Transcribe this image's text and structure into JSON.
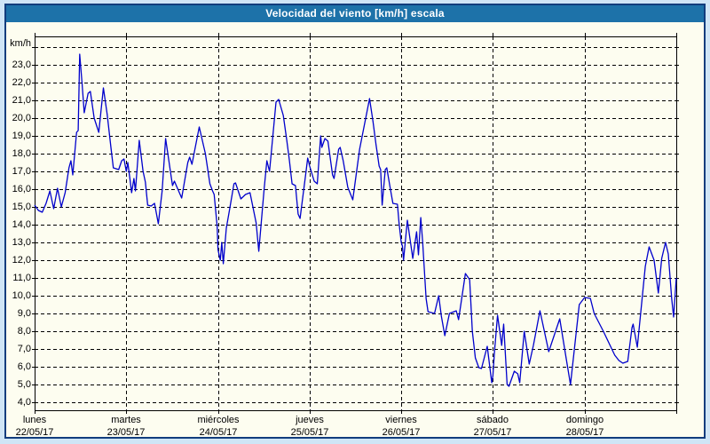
{
  "window": {
    "title": "Velocidad del viento [km/h] escala"
  },
  "colors": {
    "page_bg": "#cfe5f6",
    "frame_border": "#123d7d",
    "titlebar_bg": "#1d72a9",
    "titlebar_text": "#ffffff",
    "panel_bg": "#fdfdf0",
    "grid": "#000000",
    "axis": "#000000",
    "line": "#0000cc",
    "label_text": "#000000"
  },
  "chart_data": {
    "type": "line",
    "title": "Velocidad del viento [km/h] escala",
    "unit_label": "km/h",
    "legend": "none",
    "grid": "dashed",
    "y_axis": {
      "tick_labels": [
        "23,0",
        "22,0",
        "21,0",
        "20,0",
        "19,0",
        "18,0",
        "17,0",
        "16,0",
        "15,0",
        "14,0",
        "13,0",
        "12,0",
        "11,0",
        "10,0",
        "9,0",
        "8,0",
        "7,0",
        "6,0",
        "5,0",
        "4,0"
      ],
      "tick_values": [
        23,
        22,
        21,
        20,
        19,
        18,
        17,
        16,
        15,
        14,
        13,
        12,
        11,
        10,
        9,
        8,
        7,
        6,
        5,
        4
      ],
      "unlabeled_top_gridline": 24,
      "plot_range": [
        3.55,
        24.6
      ]
    },
    "x_axis": {
      "days": [
        {
          "name": "lunes",
          "date": "22/05/17"
        },
        {
          "name": "martes",
          "date": "23/05/17"
        },
        {
          "name": "miércoles",
          "date": "24/05/17"
        },
        {
          "name": "jueves",
          "date": "25/05/17"
        },
        {
          "name": "viernes",
          "date": "26/05/17"
        },
        {
          "name": "sábado",
          "date": "27/05/17"
        },
        {
          "name": "domingo",
          "date": "28/05/17"
        }
      ],
      "hours_total": 168,
      "gridlines_at": "midnights"
    },
    "series": [
      {
        "name": "velocidad del viento",
        "unit": "km/h",
        "color": "#0000cc",
        "points_hour_value": [
          [
            0,
            15.1
          ],
          [
            1,
            14.8
          ],
          [
            2,
            14.7
          ],
          [
            3,
            15.2
          ],
          [
            4,
            15.9
          ],
          [
            5,
            14.9
          ],
          [
            6,
            16.05
          ],
          [
            7,
            15.0
          ],
          [
            8,
            15.8
          ],
          [
            9,
            17.2
          ],
          [
            9.5,
            17.6
          ],
          [
            10,
            16.8
          ],
          [
            11,
            19.2
          ],
          [
            11.4,
            19.3
          ],
          [
            11.8,
            23.6
          ],
          [
            12.4,
            22.0
          ],
          [
            13,
            20.3
          ],
          [
            14,
            21.4
          ],
          [
            14.6,
            21.5
          ],
          [
            15.6,
            20.0
          ],
          [
            16.8,
            19.2
          ],
          [
            18,
            21.7
          ],
          [
            19,
            20.2
          ],
          [
            20,
            18.3
          ],
          [
            20.6,
            17.2
          ],
          [
            22,
            17.1
          ],
          [
            22.8,
            17.6
          ],
          [
            23.4,
            17.7
          ],
          [
            24,
            17.0
          ],
          [
            24.4,
            17.5
          ],
          [
            25,
            16.5
          ],
          [
            25.4,
            15.8
          ],
          [
            26,
            16.6
          ],
          [
            26.4,
            15.9
          ],
          [
            27.4,
            18.75
          ],
          [
            28.4,
            17.0
          ],
          [
            29,
            16.4
          ],
          [
            29.6,
            15.1
          ],
          [
            30.5,
            15.05
          ],
          [
            31.4,
            15.2
          ],
          [
            32.4,
            14.05
          ],
          [
            33.4,
            15.9
          ],
          [
            34.3,
            18.85
          ],
          [
            35.7,
            16.8
          ],
          [
            36.1,
            16.2
          ],
          [
            36.6,
            16.45
          ],
          [
            38.5,
            15.5
          ],
          [
            40.1,
            17.5
          ],
          [
            40.6,
            17.8
          ],
          [
            41.2,
            17.4
          ],
          [
            43.1,
            19.5
          ],
          [
            44.7,
            18.0
          ],
          [
            45.9,
            16.3
          ],
          [
            46.6,
            15.9
          ],
          [
            47,
            15.7
          ],
          [
            47.8,
            13.9
          ],
          [
            48,
            12.6
          ],
          [
            48.6,
            12.0
          ],
          [
            49,
            13.0
          ],
          [
            49.4,
            11.8
          ],
          [
            50.2,
            13.8
          ],
          [
            51,
            14.8
          ],
          [
            52.2,
            16.3
          ],
          [
            52.6,
            16.35
          ],
          [
            54,
            15.45
          ],
          [
            55.2,
            15.7
          ],
          [
            56.4,
            15.8
          ],
          [
            58,
            14.1
          ],
          [
            58.7,
            12.5
          ],
          [
            60.1,
            16.0
          ],
          [
            60.8,
            17.6
          ],
          [
            61.5,
            17.0
          ],
          [
            63.2,
            20.9
          ],
          [
            63.9,
            21.05
          ],
          [
            65.1,
            20.15
          ],
          [
            66,
            18.8
          ],
          [
            66.7,
            17.65
          ],
          [
            67.4,
            16.3
          ],
          [
            68.3,
            16.2
          ],
          [
            69,
            14.6
          ],
          [
            69.5,
            14.35
          ],
          [
            71,
            16.9
          ],
          [
            71.5,
            17.75
          ],
          [
            72,
            17.3
          ],
          [
            73.2,
            16.45
          ],
          [
            74,
            16.3
          ],
          [
            74.9,
            19.0
          ],
          [
            75.2,
            18.35
          ],
          [
            76,
            18.85
          ],
          [
            76.8,
            18.7
          ],
          [
            78,
            16.8
          ],
          [
            78.4,
            16.6
          ],
          [
            79.6,
            18.25
          ],
          [
            80,
            18.35
          ],
          [
            80.8,
            17.6
          ],
          [
            82,
            16.1
          ],
          [
            83.3,
            15.4
          ],
          [
            85.1,
            18.25
          ],
          [
            87.7,
            21.1
          ],
          [
            88.6,
            19.8
          ],
          [
            89.4,
            18.5
          ],
          [
            90.2,
            17.3
          ],
          [
            90.6,
            17.1
          ],
          [
            91,
            15.1
          ],
          [
            91.8,
            17.1
          ],
          [
            92.2,
            17.2
          ],
          [
            93,
            16.2
          ],
          [
            93.8,
            15.2
          ],
          [
            95,
            15.15
          ],
          [
            95.4,
            14.1
          ],
          [
            96,
            13.0
          ],
          [
            96.3,
            12.8
          ],
          [
            96.6,
            12.0
          ],
          [
            97.6,
            14.25
          ],
          [
            99,
            12.1
          ],
          [
            100,
            13.6
          ],
          [
            100.5,
            12.3
          ],
          [
            101.1,
            14.4
          ],
          [
            101.6,
            13.05
          ],
          [
            102.5,
            9.85
          ],
          [
            103,
            9.1
          ],
          [
            104.7,
            9.0
          ],
          [
            105.8,
            10.0
          ],
          [
            106.5,
            8.85
          ],
          [
            107.4,
            7.75
          ],
          [
            108.6,
            9.0
          ],
          [
            110.4,
            9.15
          ],
          [
            111,
            8.65
          ],
          [
            112.8,
            11.25
          ],
          [
            113.9,
            10.9
          ],
          [
            114.6,
            8.0
          ],
          [
            115.4,
            6.5
          ],
          [
            116.3,
            5.95
          ],
          [
            117,
            5.9
          ],
          [
            118.5,
            7.15
          ],
          [
            119.7,
            5.1
          ],
          [
            120,
            5.5
          ],
          [
            120.4,
            6.8
          ],
          [
            121.2,
            8.9
          ],
          [
            122.3,
            7.2
          ],
          [
            122.8,
            8.4
          ],
          [
            123.7,
            5.0
          ],
          [
            124.2,
            4.9
          ],
          [
            125.6,
            5.75
          ],
          [
            126.5,
            5.6
          ],
          [
            127,
            5.1
          ],
          [
            128.2,
            8.0
          ],
          [
            129.5,
            6.15
          ],
          [
            130.6,
            7.2
          ],
          [
            132.3,
            9.15
          ],
          [
            134.6,
            6.85
          ],
          [
            137.5,
            8.7
          ],
          [
            139.3,
            6.3
          ],
          [
            140.3,
            5.0
          ],
          [
            142.6,
            9.5
          ],
          [
            144,
            9.9
          ],
          [
            145.5,
            9.85
          ],
          [
            146.5,
            9.0
          ],
          [
            148.9,
            8.0
          ],
          [
            151.9,
            6.65
          ],
          [
            153,
            6.35
          ],
          [
            154,
            6.2
          ],
          [
            155.3,
            6.3
          ],
          [
            156.4,
            8.2
          ],
          [
            156.7,
            8.4
          ],
          [
            157.8,
            7.1
          ],
          [
            159.9,
            11.65
          ],
          [
            160.9,
            12.75
          ],
          [
            162.2,
            12.0
          ],
          [
            163.3,
            10.15
          ],
          [
            164.2,
            12.1
          ],
          [
            165.2,
            13.0
          ],
          [
            165.9,
            12.35
          ],
          [
            166.8,
            9.85
          ],
          [
            167.3,
            8.8
          ],
          [
            168,
            11.0
          ]
        ]
      }
    ]
  }
}
